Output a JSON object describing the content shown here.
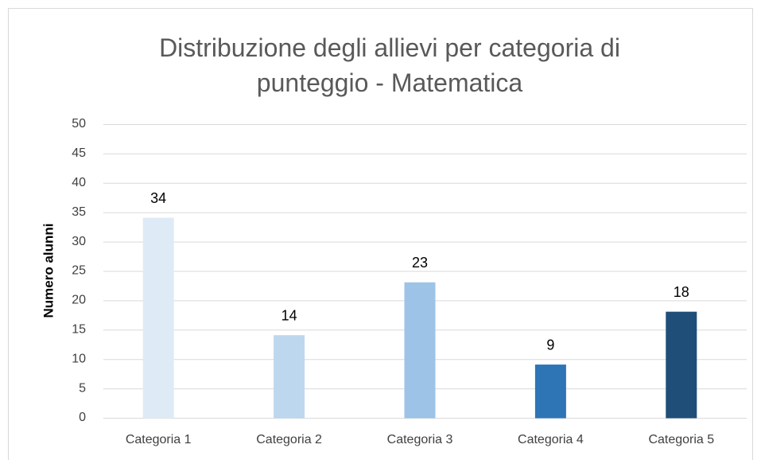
{
  "chart_data": {
    "type": "bar",
    "title": "Distribuzione degli allievi per categoria di punteggio - Matematica",
    "y_label": "Numero alunni",
    "categories": [
      "Categoria 1",
      "Categoria 2",
      "Categoria 3",
      "Categoria 4",
      "Categoria 5"
    ],
    "values": [
      34,
      14,
      23,
      9,
      18
    ],
    "colors": [
      "#deebf7",
      "#bdd7ee",
      "#9dc3e6",
      "#2e75b6",
      "#1f4e79"
    ],
    "ylim": [
      0,
      50
    ],
    "yticks": [
      0,
      5,
      10,
      15,
      20,
      25,
      30,
      35,
      40,
      45,
      50
    ],
    "grid": true
  }
}
